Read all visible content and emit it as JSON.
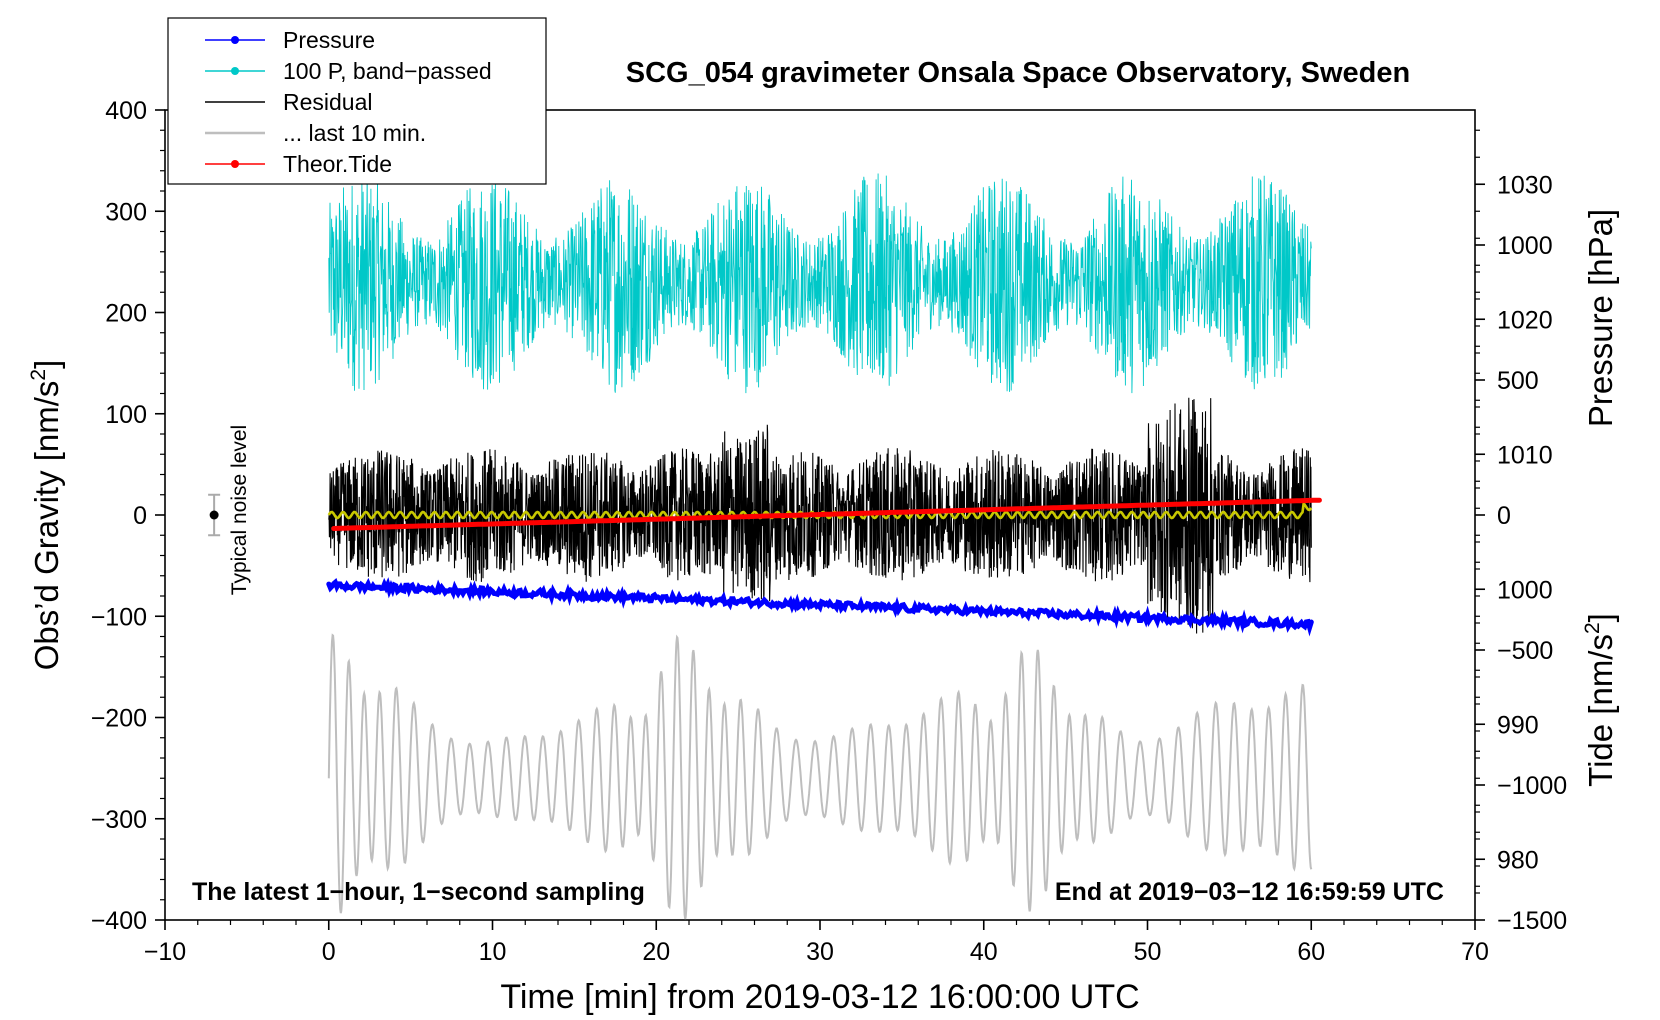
{
  "chart_data": {
    "type": "line",
    "title": "SCG_054 gravimeter Onsala Space Observatory, Sweden",
    "xlabel": "Time [min] from 2019-03-12 16:00:00 UTC",
    "ylabel_main": "Obs’d Gravity [nm/s",
    "ylabel_sup": "2",
    "ylabel_close": "]",
    "ylabel_pressure": "Pressure [hPa]",
    "ylabel_tide_main": "Tide [nm/s",
    "ylabel_tide_sup": "2",
    "ylabel_tide_close": "]",
    "xlim": [
      -10,
      70
    ],
    "ylim": [
      -400,
      400
    ],
    "pressure_lim": [
      975.5,
      1035.5
    ],
    "tide_lim": [
      -1500,
      1500
    ],
    "x_ticks": [
      -10,
      0,
      10,
      20,
      30,
      40,
      50,
      60,
      70
    ],
    "x_tick_labels": [
      "−10",
      "0",
      "10",
      "20",
      "30",
      "40",
      "50",
      "60",
      "70"
    ],
    "y_ticks": [
      400,
      300,
      200,
      100,
      0,
      -100,
      -200,
      -300,
      -400
    ],
    "y_tick_labels": [
      "400",
      "300",
      "200",
      "100",
      "0",
      "−100",
      "−200",
      "−300",
      "−400"
    ],
    "pressure_ticks": [
      1030,
      1020,
      1010,
      1000,
      990,
      980
    ],
    "pressure_tick_labels": [
      "1030",
      "1020",
      "1010",
      "1000",
      "990",
      "980"
    ],
    "tide_ticks": [
      1000,
      500,
      0,
      -500,
      -1000,
      -1500
    ],
    "tide_tick_labels": [
      "1000",
      "500",
      "0",
      "−500",
      "−1000",
      "−1500"
    ],
    "legend": [
      {
        "name": "Pressure",
        "color": "#0000ff",
        "marker": true
      },
      {
        "name": "100 P, band−passed",
        "color": "#00c8c8",
        "marker": true
      },
      {
        "name": "Residual",
        "color": "#000000",
        "marker": false
      },
      {
        "name": "... last 10 min.",
        "color": "#bebebe",
        "marker": false
      },
      {
        "name": "Theor.Tide",
        "color": "#ff0000",
        "marker": true
      }
    ],
    "annotations": {
      "bottom_left": "The latest 1−hour, 1−second sampling",
      "bottom_right": "End at 2019−03−12 16:59:59 UTC",
      "noise_label": "Typical noise level"
    },
    "noise_bar": {
      "x": -7,
      "center": 0,
      "half_range": 20
    },
    "series": [
      {
        "name": "Pressure",
        "axis": "pressure",
        "color": "#0000ff",
        "x_start": 0,
        "x_end": 60,
        "start_value": 1000.3,
        "end_value": 997.4
      },
      {
        "name": "100 P, band−passed",
        "axis": "gravity",
        "color": "#00c8c8",
        "x_start": 0,
        "x_end": 60,
        "center": 230,
        "amplitude": 110
      },
      {
        "name": "Residual",
        "axis": "gravity",
        "color": "#000000",
        "x_start": 0,
        "x_end": 60,
        "center": 0,
        "amplitude": 95
      },
      {
        "name": "Residual smoothed",
        "axis": "gravity",
        "color": "#c8c800",
        "x_start": 0,
        "x_end": 60,
        "center": 0,
        "amplitude": 3
      },
      {
        "name": "... last 10 min.",
        "axis": "gravity",
        "color": "#bebebe",
        "x_start": 0,
        "x_end": 60,
        "center": -260,
        "amplitude": 120
      },
      {
        "name": "Theor.Tide",
        "axis": "tide",
        "color": "#ff0000",
        "x_start": 0.3,
        "x_end": 60.5,
        "start_value": -50,
        "end_value": 55
      }
    ]
  }
}
